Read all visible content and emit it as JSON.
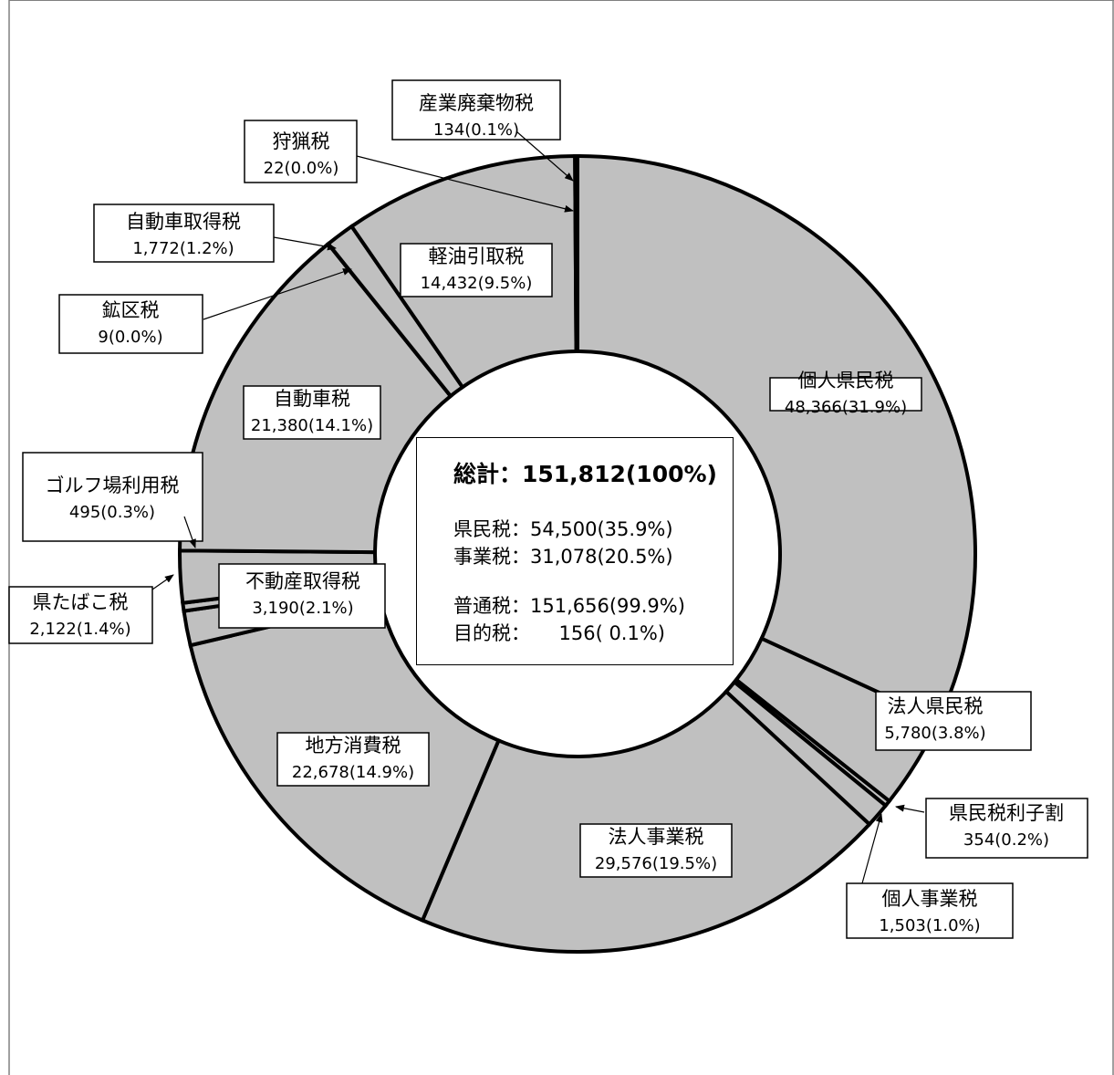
{
  "chart_data": {
    "type": "pie",
    "style": "donut",
    "total_label": "総計：151,812(100%)",
    "summary": [
      {
        "text": "県民税：54,500(35.9%)"
      },
      {
        "text": "事業税：31,078(20.5%)"
      },
      {
        "text": "普通税：151,656(99.9%)"
      },
      {
        "text": "目的税：　　156( 0.1%)"
      }
    ],
    "slices": [
      {
        "name": "個人県民税",
        "value": 48366,
        "label": "48,366(31.9%)"
      },
      {
        "name": "法人県民税",
        "value": 5780,
        "label": "5,780(3.8%)"
      },
      {
        "name": "県民税利子割",
        "value": 354,
        "label": "354(0.2%)"
      },
      {
        "name": "個人事業税",
        "value": 1503,
        "label": "1,503(1.0%)"
      },
      {
        "name": "法人事業税",
        "value": 29576,
        "label": "29,576(19.5%)"
      },
      {
        "name": "地方消費税",
        "value": 22678,
        "label": "22,678(14.9%)"
      },
      {
        "name": "県たばこ税",
        "value": 2122,
        "label": "2,122(1.4%)"
      },
      {
        "name": "ゴルフ場利用税",
        "value": 495,
        "label": "495(0.3%)"
      },
      {
        "name": "不動産取得税",
        "value": 3190,
        "label": "3,190(2.1%)"
      },
      {
        "name": "自動車税",
        "value": 21380,
        "label": "21,380(14.1%)"
      },
      {
        "name": "鉱区税",
        "value": 9,
        "label": "9(0.0%)"
      },
      {
        "name": "自動車取得税",
        "value": 1772,
        "label": "1,772(1.2%)"
      },
      {
        "name": "軽油引取税",
        "value": 14432,
        "label": "14,432(9.5%)"
      },
      {
        "name": "狩猟税",
        "value": 22,
        "label": "22(0.0%)"
      },
      {
        "name": "産業廃棄物税",
        "value": 134,
        "label": "134(0.1%)"
      }
    ],
    "colors": {
      "fill": "#c0c0c0",
      "stroke": "#000000",
      "background": "#ffffff"
    }
  }
}
